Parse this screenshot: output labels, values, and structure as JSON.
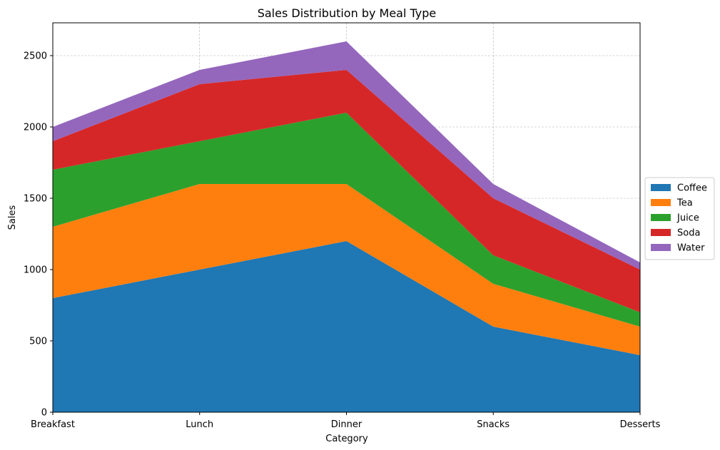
{
  "chart_data": {
    "type": "area",
    "stacked": true,
    "title": "Sales Distribution by Meal Type",
    "xlabel": "Category",
    "ylabel": "Sales",
    "categories": [
      "Breakfast",
      "Lunch",
      "Dinner",
      "Snacks",
      "Desserts"
    ],
    "ylim": [
      0,
      2730
    ],
    "yticks": [
      0,
      500,
      1000,
      1500,
      2000,
      2500
    ],
    "grid": true,
    "legend_position": "center-right",
    "series": [
      {
        "name": "Coffee",
        "color": "#1f77b4",
        "values": [
          800,
          1000,
          1200,
          600,
          400
        ]
      },
      {
        "name": "Tea",
        "color": "#ff7f0e",
        "values": [
          500,
          600,
          400,
          300,
          200
        ]
      },
      {
        "name": "Juice",
        "color": "#2ca02c",
        "values": [
          400,
          300,
          500,
          200,
          100
        ]
      },
      {
        "name": "Soda",
        "color": "#d62728",
        "values": [
          200,
          400,
          300,
          400,
          300
        ]
      },
      {
        "name": "Water",
        "color": "#9467bd",
        "values": [
          100,
          100,
          200,
          100,
          50
        ]
      }
    ]
  }
}
